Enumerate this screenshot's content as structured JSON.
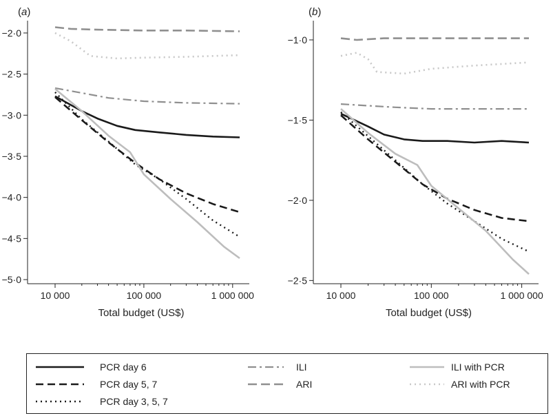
{
  "chart_data": [
    {
      "panel_label": "(a)",
      "type": "line",
      "xlabel": "Total budget (US$)",
      "xscale": "log",
      "xlim": [
        10000,
        1200000
      ],
      "xticks": [
        10000,
        100000,
        1000000
      ],
      "xtick_labels": [
        "10 000",
        "100 000",
        "1 000 000"
      ],
      "ylim": [
        -5.05,
        -1.85
      ],
      "yticks": [
        -2.0,
        -2.5,
        -3.0,
        -3.5,
        -4.0,
        -4.5,
        -5.0
      ],
      "ytick_labels": [
        "−2·0",
        "−2·5",
        "−3·0",
        "−3·5",
        "−4·0",
        "−4·5",
        "−5·0"
      ],
      "series": [
        {
          "name": "PCR day 6",
          "x": [
            10000,
            20000,
            30000,
            50000,
            80000,
            150000,
            300000,
            600000,
            1200000
          ],
          "y": [
            -2.77,
            -2.95,
            -3.04,
            -3.13,
            -3.18,
            -3.21,
            -3.24,
            -3.26,
            -3.27
          ]
        },
        {
          "name": "PCR day 5, 7",
          "x": [
            10000,
            20000,
            40000,
            80000,
            150000,
            300000,
            600000,
            1200000
          ],
          "y": [
            -2.78,
            -3.06,
            -3.33,
            -3.58,
            -3.78,
            -3.95,
            -4.08,
            -4.18
          ]
        },
        {
          "name": "PCR day 3, 5, 7",
          "x": [
            10000,
            20000,
            40000,
            80000,
            150000,
            300000,
            600000,
            1200000
          ],
          "y": [
            -2.72,
            -3.05,
            -3.32,
            -3.6,
            -3.78,
            -4.02,
            -4.28,
            -4.48
          ]
        },
        {
          "name": "ILI",
          "x": [
            10000,
            20000,
            40000,
            100000,
            300000,
            1200000
          ],
          "y": [
            -2.67,
            -2.73,
            -2.79,
            -2.83,
            -2.85,
            -2.86
          ]
        },
        {
          "name": "ARI",
          "x": [
            10000,
            15000,
            30000,
            100000,
            300000,
            1200000
          ],
          "y": [
            -1.93,
            -1.95,
            -1.96,
            -1.97,
            -1.97,
            -1.98
          ]
        },
        {
          "name": "ILI with PCR",
          "x": [
            10000,
            20000,
            40000,
            70000,
            100000,
            200000,
            400000,
            800000,
            1200000
          ],
          "y": [
            -2.68,
            -2.95,
            -3.25,
            -3.45,
            -3.72,
            -4.02,
            -4.3,
            -4.6,
            -4.74
          ]
        },
        {
          "name": "ARI with PCR",
          "x": [
            10000,
            15000,
            25000,
            50000,
            100000,
            300000,
            1200000
          ],
          "y": [
            -2.0,
            -2.1,
            -2.28,
            -2.31,
            -2.3,
            -2.29,
            -2.27
          ]
        }
      ]
    },
    {
      "panel_label": "(b)",
      "type": "line",
      "xlabel": "Total budget (US$)",
      "xscale": "log",
      "xlim": [
        10000,
        1200000
      ],
      "xticks": [
        10000,
        100000,
        1000000
      ],
      "xtick_labels": [
        "10 000",
        "100 000",
        "1 000 000"
      ],
      "ylim": [
        -2.52,
        -0.88
      ],
      "yticks": [
        -1.0,
        -1.5,
        -2.0,
        -2.5
      ],
      "ytick_labels": [
        "−1·0",
        "−1·5",
        "−2·0",
        "−2·5"
      ],
      "series": [
        {
          "name": "PCR day 6",
          "x": [
            10000,
            20000,
            30000,
            50000,
            80000,
            150000,
            300000,
            600000,
            1200000
          ],
          "y": [
            -1.46,
            -1.54,
            -1.59,
            -1.62,
            -1.63,
            -1.63,
            -1.64,
            -1.63,
            -1.64
          ]
        },
        {
          "name": "PCR day 5, 7",
          "x": [
            10000,
            20000,
            40000,
            80000,
            150000,
            300000,
            600000,
            1200000
          ],
          "y": [
            -1.47,
            -1.62,
            -1.76,
            -1.9,
            -1.99,
            -2.06,
            -2.11,
            -2.13
          ]
        },
        {
          "name": "PCR day 3, 5, 7",
          "x": [
            10000,
            20000,
            40000,
            80000,
            150000,
            300000,
            600000,
            1200000
          ],
          "y": [
            -1.45,
            -1.6,
            -1.75,
            -1.9,
            -2.02,
            -2.13,
            -2.24,
            -2.32
          ]
        },
        {
          "name": "ILI",
          "x": [
            10000,
            20000,
            40000,
            100000,
            300000,
            1200000
          ],
          "y": [
            -1.4,
            -1.41,
            -1.42,
            -1.43,
            -1.43,
            -1.43
          ]
        },
        {
          "name": "ARI",
          "x": [
            10000,
            15000,
            30000,
            100000,
            300000,
            1200000
          ],
          "y": [
            -0.99,
            -1.0,
            -0.99,
            -0.99,
            -0.99,
            -0.99
          ]
        },
        {
          "name": "ILI with PCR",
          "x": [
            10000,
            20000,
            40000,
            70000,
            100000,
            200000,
            400000,
            800000,
            1200000
          ],
          "y": [
            -1.43,
            -1.58,
            -1.71,
            -1.78,
            -1.91,
            -2.05,
            -2.19,
            -2.37,
            -2.46
          ]
        },
        {
          "name": "ARI with PCR",
          "x": [
            10000,
            15000,
            20000,
            25000,
            50000,
            100000,
            300000,
            1200000
          ],
          "y": [
            -1.1,
            -1.08,
            -1.12,
            -1.2,
            -1.21,
            -1.18,
            -1.16,
            -1.14
          ]
        }
      ]
    }
  ],
  "legend": {
    "placement": "bottom",
    "entries": [
      "PCR day 6",
      "PCR day 5, 7",
      "PCR day 3, 5, 7",
      "ILI",
      "ARI",
      "ILI with PCR",
      "ARI with PCR"
    ]
  }
}
